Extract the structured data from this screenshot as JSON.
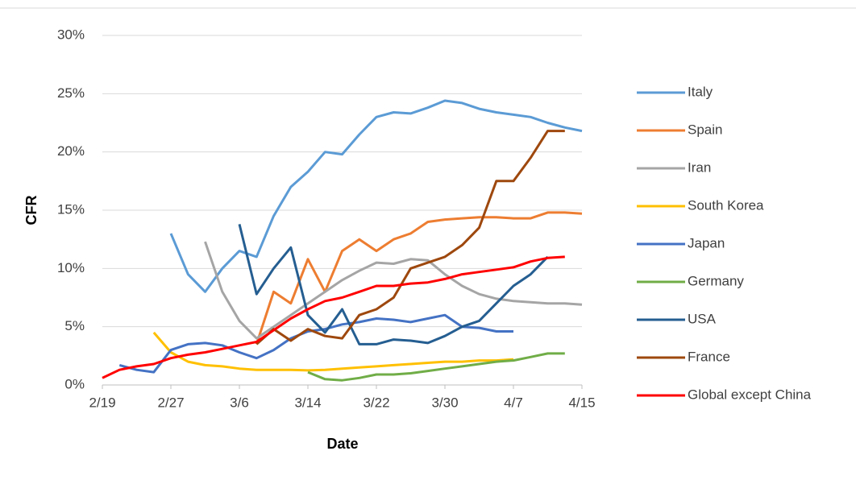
{
  "chart_data": {
    "type": "line",
    "x_label": "Date",
    "y_label": "CFR",
    "x": [
      0,
      2,
      4,
      6,
      8,
      10,
      12,
      14,
      16,
      18,
      20,
      22,
      24,
      26,
      28,
      30,
      32,
      34,
      36,
      38,
      40,
      42,
      44,
      46,
      48,
      50,
      52,
      54,
      56
    ],
    "xlim": [
      0,
      56
    ],
    "xticks": [
      {
        "value": 0,
        "label": "2/19"
      },
      {
        "value": 8,
        "label": "2/27"
      },
      {
        "value": 16,
        "label": "3/6"
      },
      {
        "value": 24,
        "label": "3/14"
      },
      {
        "value": 32,
        "label": "3/22"
      },
      {
        "value": 40,
        "label": "3/30"
      },
      {
        "value": 48,
        "label": "4/7"
      },
      {
        "value": 56,
        "label": "4/15"
      }
    ],
    "ylim": [
      0,
      30
    ],
    "yticks": [
      {
        "value": 0,
        "label": "0%"
      },
      {
        "value": 5,
        "label": "5%"
      },
      {
        "value": 10,
        "label": "10%"
      },
      {
        "value": 15,
        "label": "15%"
      },
      {
        "value": 20,
        "label": "20%"
      },
      {
        "value": 25,
        "label": "25%"
      },
      {
        "value": 30,
        "label": "30%"
      }
    ],
    "grid": true,
    "legend": "right",
    "series": [
      {
        "name": "Italy",
        "color": "#5b9bd5",
        "values": [
          null,
          null,
          null,
          null,
          13,
          9.5,
          8,
          10,
          11.5,
          11,
          14.5,
          17,
          18.3,
          20,
          19.8,
          21.5,
          23,
          23.4,
          23.3,
          23.8,
          24.4,
          24.2,
          23.7,
          23.4,
          23.2,
          23,
          22.5,
          22.1,
          21.8
        ]
      },
      {
        "name": "Spain",
        "color": "#ed7d31",
        "values": [
          null,
          null,
          null,
          null,
          null,
          null,
          null,
          null,
          null,
          3.5,
          8,
          7,
          10.8,
          8,
          11.5,
          12.5,
          11.5,
          12.5,
          13,
          14,
          14.2,
          14.3,
          14.4,
          14.4,
          14.3,
          14.3,
          14.8,
          14.8,
          14.7
        ]
      },
      {
        "name": "Iran",
        "color": "#a5a5a5",
        "values": [
          null,
          null,
          null,
          null,
          null,
          null,
          12.3,
          8,
          5.5,
          4,
          5,
          6,
          7,
          8,
          9,
          9.8,
          10.5,
          10.4,
          10.8,
          10.7,
          9.5,
          8.5,
          7.8,
          7.4,
          7.2,
          7.1,
          7.0,
          7.0,
          6.9
        ]
      },
      {
        "name": "South Korea",
        "color": "#ffc000",
        "values": [
          null,
          null,
          null,
          4.5,
          2.8,
          2,
          1.7,
          1.6,
          1.4,
          1.3,
          1.3,
          1.3,
          1.25,
          1.3,
          1.4,
          1.5,
          1.6,
          1.7,
          1.8,
          1.9,
          2.0,
          2.0,
          2.1,
          2.1,
          2.2,
          null,
          null,
          null,
          null
        ]
      },
      {
        "name": "Japan",
        "color": "#4472c4",
        "values": [
          null,
          1.7,
          1.3,
          1.1,
          3,
          3.5,
          3.6,
          3.4,
          2.8,
          2.3,
          3,
          4,
          4.6,
          4.8,
          5.2,
          5.4,
          5.7,
          5.6,
          5.4,
          5.7,
          6.0,
          5.0,
          4.9,
          4.6,
          4.6,
          null,
          null,
          null,
          null
        ]
      },
      {
        "name": "Germany",
        "color": "#70ad47",
        "values": [
          null,
          null,
          null,
          null,
          null,
          null,
          null,
          null,
          null,
          null,
          null,
          null,
          1.1,
          0.5,
          0.4,
          0.6,
          0.9,
          0.9,
          1.0,
          1.2,
          1.4,
          1.6,
          1.8,
          2.0,
          2.1,
          2.4,
          2.7,
          2.7,
          null
        ]
      },
      {
        "name": "USA",
        "color": "#255e91",
        "values": [
          null,
          null,
          null,
          null,
          null,
          null,
          null,
          null,
          13.8,
          7.8,
          10,
          11.8,
          6,
          4.5,
          6.5,
          3.5,
          3.5,
          3.9,
          3.8,
          3.6,
          4.2,
          5.0,
          5.5,
          7,
          8.5,
          9.5,
          11,
          null,
          null
        ]
      },
      {
        "name": "France",
        "color": "#9e480e",
        "values": [
          null,
          null,
          null,
          null,
          null,
          null,
          null,
          null,
          null,
          3.5,
          4.8,
          3.8,
          4.8,
          4.2,
          4,
          6,
          6.5,
          7.5,
          10,
          10.5,
          11,
          12,
          13.5,
          17.5,
          17.5,
          19.5,
          21.8,
          21.8,
          null
        ]
      },
      {
        "name": "Global except China",
        "color": "#ff0000",
        "values": [
          0.6,
          1.3,
          1.6,
          1.8,
          2.3,
          2.6,
          2.8,
          3.1,
          3.4,
          3.7,
          4.7,
          5.7,
          6.5,
          7.2,
          7.5,
          8,
          8.5,
          8.5,
          8.7,
          8.8,
          9.1,
          9.5,
          9.7,
          9.9,
          10.1,
          10.6,
          10.9,
          11.0,
          null
        ]
      }
    ]
  }
}
